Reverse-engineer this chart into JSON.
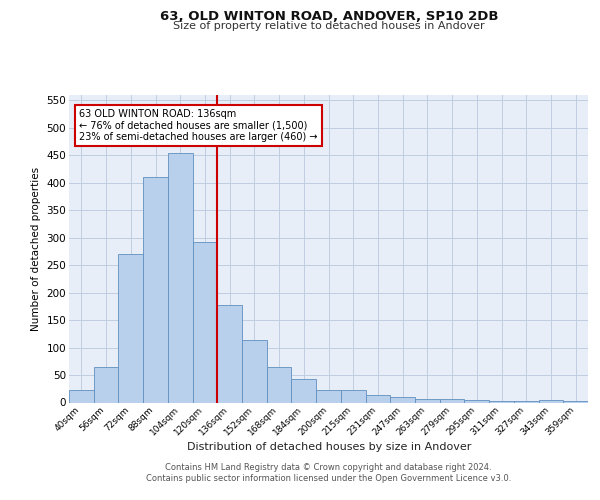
{
  "title": "63, OLD WINTON ROAD, ANDOVER, SP10 2DB",
  "subtitle": "Size of property relative to detached houses in Andover",
  "xlabel": "Distribution of detached houses by size in Andover",
  "ylabel": "Number of detached properties",
  "categories": [
    "40sqm",
    "56sqm",
    "72sqm",
    "88sqm",
    "104sqm",
    "120sqm",
    "136sqm",
    "152sqm",
    "168sqm",
    "184sqm",
    "200sqm",
    "215sqm",
    "231sqm",
    "247sqm",
    "263sqm",
    "279sqm",
    "295sqm",
    "311sqm",
    "327sqm",
    "343sqm",
    "359sqm"
  ],
  "values": [
    22,
    65,
    270,
    410,
    455,
    293,
    178,
    113,
    65,
    42,
    22,
    22,
    13,
    10,
    6,
    6,
    4,
    3,
    3,
    5,
    3
  ],
  "bar_color": "#b8d0ec",
  "bar_edge_color": "#6090c0",
  "highlight_index": 6,
  "highlight_line_color": "#cc0000",
  "ylim": [
    0,
    560
  ],
  "yticks": [
    0,
    50,
    100,
    150,
    200,
    250,
    300,
    350,
    400,
    450,
    500,
    550
  ],
  "annotation_text": "63 OLD WINTON ROAD: 136sqm\n← 76% of detached houses are smaller (1,500)\n23% of semi-detached houses are larger (460) →",
  "annotation_box_color": "#ffffff",
  "annotation_box_edge_color": "#cc0000",
  "footer_text": "Contains HM Land Registry data © Crown copyright and database right 2024.\nContains public sector information licensed under the Open Government Licence v3.0.",
  "background_color": "#e8eef8",
  "grid_color": "#c0cce0",
  "fig_width": 6.0,
  "fig_height": 5.0,
  "dpi": 100
}
